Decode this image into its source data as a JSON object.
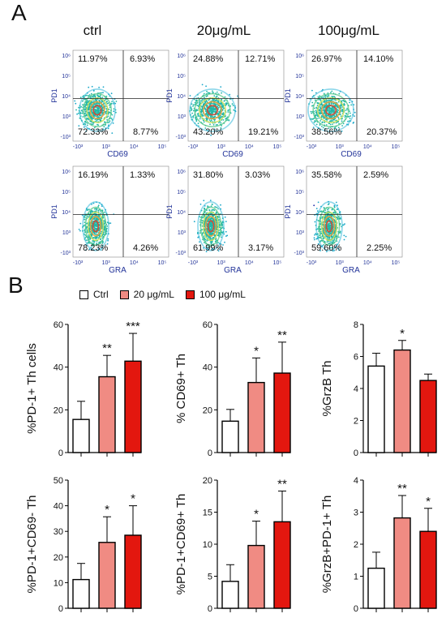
{
  "panel_a": {
    "letter": "A",
    "conditions": [
      "ctrl",
      "20μg/mL",
      "100μg/mL"
    ],
    "plots": [
      {
        "row": 0,
        "col": 0,
        "ylabel": "PD1",
        "xlabel": "CD69",
        "q": [
          "11.97%",
          "6.93%",
          "72.33%",
          "8.77%"
        ]
      },
      {
        "row": 0,
        "col": 1,
        "ylabel": "PD1",
        "xlabel": "CD69",
        "q": [
          "24.88%",
          "12.71%",
          "43.20%",
          "19.21%"
        ]
      },
      {
        "row": 0,
        "col": 2,
        "ylabel": "PD1",
        "xlabel": "CD69",
        "q": [
          "26.97%",
          "14.10%",
          "38.56%",
          "20.37%"
        ]
      },
      {
        "row": 1,
        "col": 0,
        "ylabel": "PD1",
        "xlabel": "GRA",
        "q": [
          "16.19%",
          "1.33%",
          "78.23%",
          "4.26%"
        ]
      },
      {
        "row": 1,
        "col": 1,
        "ylabel": "PD1",
        "xlabel": "GRA",
        "q": [
          "31.80%",
          "3.03%",
          "61.99%",
          "3.17%"
        ]
      },
      {
        "row": 1,
        "col": 2,
        "ylabel": "PD1",
        "xlabel": "GRA",
        "q": [
          "35.58%",
          "2.59%",
          "59.60%",
          "2.25%"
        ]
      }
    ],
    "x_ticks": [
      "-10³",
      "10³",
      "10⁴",
      "10⁵"
    ],
    "y_ticks": [
      "10⁶",
      "10⁵",
      "10⁴",
      "10³",
      "-10³"
    ]
  },
  "panel_b": {
    "letter": "B",
    "legend": [
      {
        "label": "Ctrl",
        "color": "#ffffff"
      },
      {
        "label": "20 μg/mL",
        "color": "#f08b83"
      },
      {
        "label": "100 μg/mL",
        "color": "#e3170f"
      }
    ]
  },
  "colors": {
    "ctrl": "#ffffff",
    "low": "#f08b83",
    "high": "#e3170f",
    "axis": "#000000"
  },
  "chart_data": [
    {
      "type": "bar",
      "ylabel": "%PD-1+  Th cells",
      "categories": [
        "Ctrl",
        "20 μg/mL",
        "100 μg/mL"
      ],
      "values": [
        15.5,
        35.5,
        42.8
      ],
      "errors": [
        8.5,
        10,
        13
      ],
      "ylim": [
        0,
        60
      ],
      "yticks": [
        0,
        20,
        40,
        60
      ],
      "significance": [
        "",
        "**",
        "***"
      ]
    },
    {
      "type": "bar",
      "ylabel": "% CD69+ Th",
      "categories": [
        "Ctrl",
        "20 μg/mL",
        "100 μg/mL"
      ],
      "values": [
        14.7,
        32.8,
        37.2
      ],
      "errors": [
        5.5,
        11.5,
        14.5
      ],
      "ylim": [
        0,
        60
      ],
      "yticks": [
        0,
        20,
        40,
        60
      ],
      "significance": [
        "",
        "*",
        "**"
      ]
    },
    {
      "type": "bar",
      "ylabel": "%GrzB Th",
      "categories": [
        "Ctrl",
        "20 μg/mL",
        "100 μg/mL"
      ],
      "values": [
        5.4,
        6.4,
        4.5
      ],
      "errors": [
        0.8,
        0.6,
        0.4
      ],
      "ylim": [
        0,
        8
      ],
      "yticks": [
        0,
        2,
        4,
        6,
        8
      ],
      "significance": [
        "",
        "*",
        ""
      ]
    },
    {
      "type": "bar",
      "ylabel": "%PD-1+CD69- Th",
      "categories": [
        "Ctrl",
        "20 μg/mL",
        "100 μg/mL"
      ],
      "values": [
        11.2,
        25.7,
        28.5
      ],
      "errors": [
        6.3,
        10,
        11.5
      ],
      "ylim": [
        0,
        50
      ],
      "yticks": [
        0,
        10,
        20,
        30,
        40,
        50
      ],
      "significance": [
        "",
        "*",
        "*"
      ]
    },
    {
      "type": "bar",
      "ylabel": "%PD-1+CD69+ Th",
      "categories": [
        "Ctrl",
        "20 μg/mL",
        "100 μg/mL"
      ],
      "values": [
        4.2,
        9.8,
        13.5
      ],
      "errors": [
        2.6,
        3.8,
        4.8
      ],
      "ylim": [
        0,
        20
      ],
      "yticks": [
        0,
        5,
        10,
        15,
        20
      ],
      "significance": [
        "",
        "*",
        "**"
      ]
    },
    {
      "type": "bar",
      "ylabel": "%GrzB+PD-1+ Th",
      "categories": [
        "Ctrl",
        "20 μg/mL",
        "100 μg/mL"
      ],
      "values": [
        1.25,
        2.82,
        2.4
      ],
      "errors": [
        0.5,
        0.7,
        0.72
      ],
      "ylim": [
        0,
        4
      ],
      "yticks": [
        0,
        1,
        2,
        3,
        4
      ],
      "significance": [
        "",
        "**",
        "*"
      ]
    }
  ]
}
